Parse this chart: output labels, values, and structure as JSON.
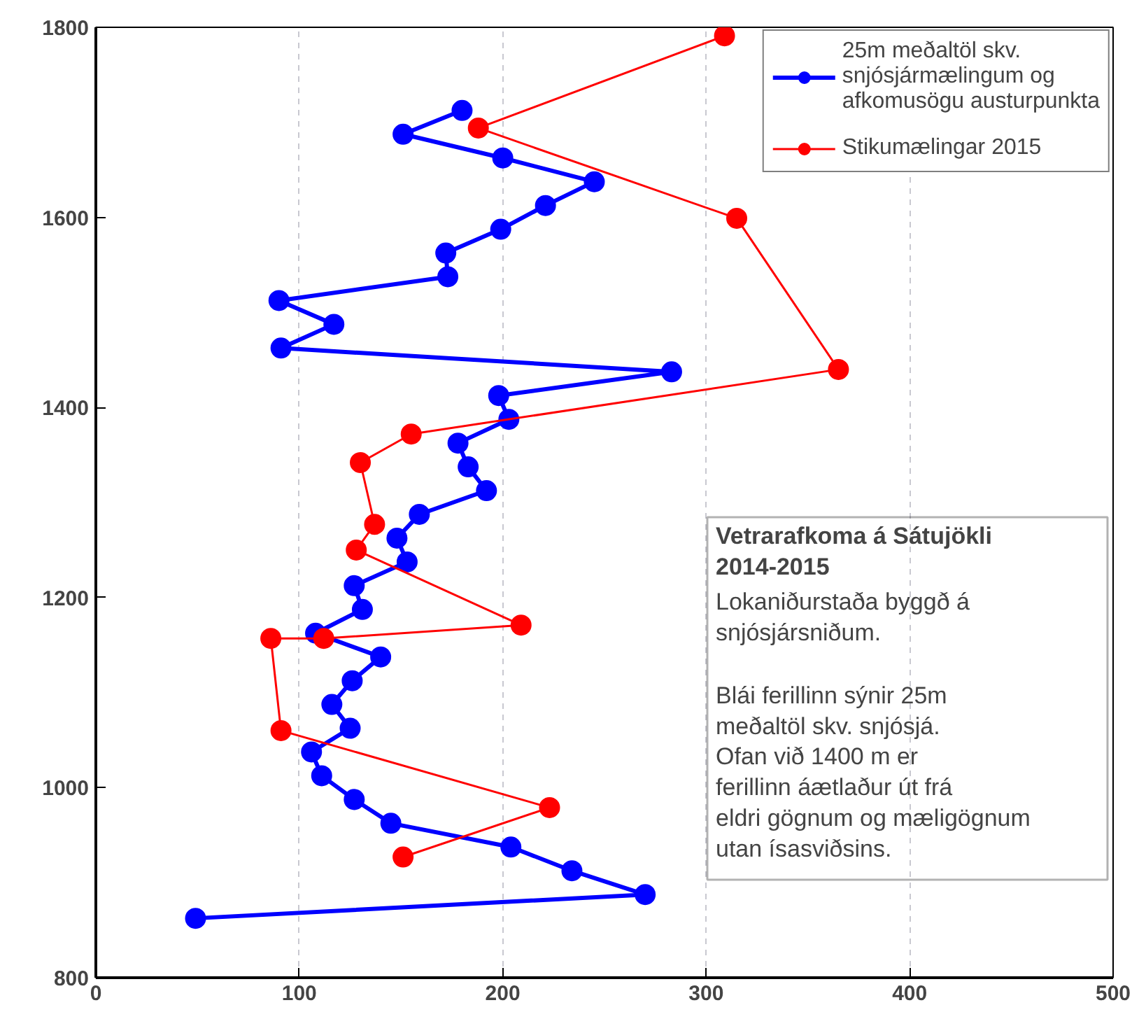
{
  "chart_data": {
    "type": "line",
    "series": [
      {
        "name": "25m meðaltöl skv. snjósjármælingum og afkomusögu austurpunkta",
        "color": "#0000ff",
        "x": [
          180,
          151,
          200,
          245,
          221,
          199,
          172,
          173,
          90,
          117,
          91,
          283,
          198,
          203,
          178,
          183,
          192,
          159,
          148,
          153,
          127,
          131,
          108,
          140,
          126,
          116,
          125,
          106,
          111,
          127,
          145,
          204,
          234,
          270,
          49
        ],
        "values": [
          1712.5,
          1687.5,
          1662.5,
          1637.5,
          1612.5,
          1587.5,
          1562.5,
          1537.5,
          1512.5,
          1487.5,
          1462.5,
          1437.5,
          1412.5,
          1387.5,
          1362.5,
          1337.5,
          1312.5,
          1287.5,
          1262.5,
          1237.5,
          1212.5,
          1187.5,
          1162.5,
          1137.5,
          1112.5,
          1087.5,
          1062.5,
          1037.5,
          1012.5,
          987.5,
          962.5,
          937.5,
          912.5,
          887.5,
          862.5
        ]
      },
      {
        "name": "Stikumælingar 2015",
        "color": "#ff0000",
        "x": [
          309,
          188,
          315,
          365,
          155,
          130,
          137,
          128,
          209,
          112,
          86,
          91,
          223,
          151
        ],
        "values": [
          1791,
          1694,
          1599,
          1440,
          1372,
          1342,
          1277,
          1250,
          1171,
          1157,
          1157,
          1060,
          979,
          927
        ]
      }
    ],
    "xlim": [
      0,
      500
    ],
    "xticks": [
      0,
      100,
      200,
      300,
      400,
      500
    ],
    "ylim": [
      800,
      1800
    ],
    "yticks": [
      800,
      1000,
      1200,
      1400,
      1600,
      1800
    ],
    "grid": "x",
    "legend": "top right",
    "marker": "circle",
    "line_style": "solid",
    "annotations": [
      "Vetrarafkoma á Sátujökli 2014-2015",
      "Lokaniðurstaða byggð á snjósjársniðum.",
      "Blái ferillinn sýnir 25m meðaltöl skv. snjósjá. Ofan við 1400 m er ferillinn áætlaður út frá eldri gögnum og mæligögnum utan ísasviðsins."
    ]
  }
}
